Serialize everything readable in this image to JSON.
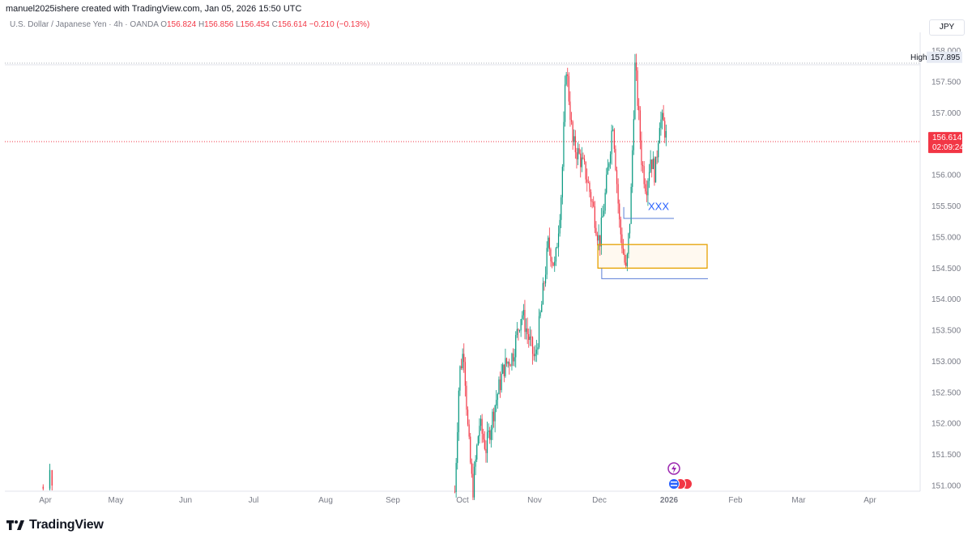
{
  "header": {
    "credit": "manuel2025ishere created with TradingView.com, Jan 05, 2026 15:50 UTC",
    "symbol": "U.S. Dollar / Japanese Yen · 4h · OANDA",
    "open_label": "O",
    "open": "156.824",
    "high_label": "H",
    "high": "156.856",
    "low_label": "L",
    "low": "156.454",
    "close_label": "C",
    "close": "156.614",
    "change": "−0.210 (−0.13%)",
    "currency": "JPY"
  },
  "chart_data": {
    "type": "candlestick",
    "x_labels": [
      "Apr",
      "May",
      "Jun",
      "Jul",
      "Aug",
      "Sep",
      "Oct",
      "Nov",
      "Dec",
      "2026",
      "Feb",
      "Mar",
      "Apr"
    ],
    "y_ticks": [
      "151.000",
      "151.500",
      "152.000",
      "152.500",
      "153.000",
      "153.500",
      "154.000",
      "154.500",
      "155.000",
      "155.500",
      "156.000",
      "156.500",
      "157.000",
      "157.500",
      "158.000"
    ],
    "ylim": [
      150.9,
      158.25
    ],
    "high_marker": {
      "label": "High",
      "value": 157.895,
      "text": "157.895"
    },
    "last_price": {
      "value": 156.614,
      "text": "156.614",
      "countdown": "02:09:24"
    },
    "price_path": [
      {
        "t": "Oct 02",
        "v": 150.9
      },
      {
        "t": "Oct 04",
        "v": 152.8
      },
      {
        "t": "Oct 06",
        "v": 153.2
      },
      {
        "t": "Oct 08",
        "v": 151.8
      },
      {
        "t": "Oct 10",
        "v": 150.9
      },
      {
        "t": "Oct 13",
        "v": 152.0
      },
      {
        "t": "Oct 16",
        "v": 151.6
      },
      {
        "t": "Oct 20",
        "v": 152.3
      },
      {
        "t": "Oct 24",
        "v": 152.9
      },
      {
        "t": "Oct 28",
        "v": 153.1
      },
      {
        "t": "Nov 01",
        "v": 153.8
      },
      {
        "t": "Nov 04",
        "v": 153.4
      },
      {
        "t": "Nov 07",
        "v": 153.0
      },
      {
        "t": "Nov 10",
        "v": 153.9
      },
      {
        "t": "Nov 13",
        "v": 154.9
      },
      {
        "t": "Nov 16",
        "v": 154.5
      },
      {
        "t": "Nov 19",
        "v": 155.8
      },
      {
        "t": "Nov 21",
        "v": 157.8
      },
      {
        "t": "Nov 24",
        "v": 156.5
      },
      {
        "t": "Nov 27",
        "v": 156.3
      },
      {
        "t": "Nov 30",
        "v": 156.0
      },
      {
        "t": "Dec 03",
        "v": 155.5
      },
      {
        "t": "Dec 06",
        "v": 154.9
      },
      {
        "t": "Dec 09",
        "v": 155.8
      },
      {
        "t": "Dec 12",
        "v": 156.9
      },
      {
        "t": "Dec 15",
        "v": 155.2
      },
      {
        "t": "Dec 18",
        "v": 154.4
      },
      {
        "t": "Dec 20",
        "v": 155.5
      },
      {
        "t": "Dec 22",
        "v": 157.8
      },
      {
        "t": "Dec 25",
        "v": 156.2
      },
      {
        "t": "Dec 27",
        "v": 155.8
      },
      {
        "t": "Dec 29",
        "v": 156.3
      },
      {
        "t": "Dec 31",
        "v": 156.0
      },
      {
        "t": "Jan 02",
        "v": 156.9
      },
      {
        "t": "Jan 04",
        "v": 156.8
      },
      {
        "t": "Jan 05",
        "v": 156.6
      }
    ],
    "early_candles": [
      {
        "t": "Mar 31",
        "o": 150.98,
        "h": 151.02,
        "l": 150.92,
        "c": 150.95
      },
      {
        "t": "Apr 03",
        "o": 150.95,
        "h": 151.35,
        "l": 150.9,
        "c": 151.25
      },
      {
        "t": "Apr 04",
        "o": 151.25,
        "h": 151.15,
        "l": 150.9,
        "c": 151.0
      }
    ],
    "annotations": {
      "text_label": {
        "text": "XXX",
        "t": "Dec 23",
        "v": 155.5
      },
      "text_line": {
        "t1": "Dec 22",
        "t2": "Dec 31",
        "v": 155.3
      },
      "zone": {
        "t1": "Dec 06",
        "t2": "Jan 20",
        "v_top": 154.88,
        "v_bottom": 154.5
      },
      "support_line": {
        "t1": "Dec 07",
        "t2": "Jan 20",
        "v": 154.33
      }
    }
  },
  "footer": {
    "brand": "TradingView"
  }
}
